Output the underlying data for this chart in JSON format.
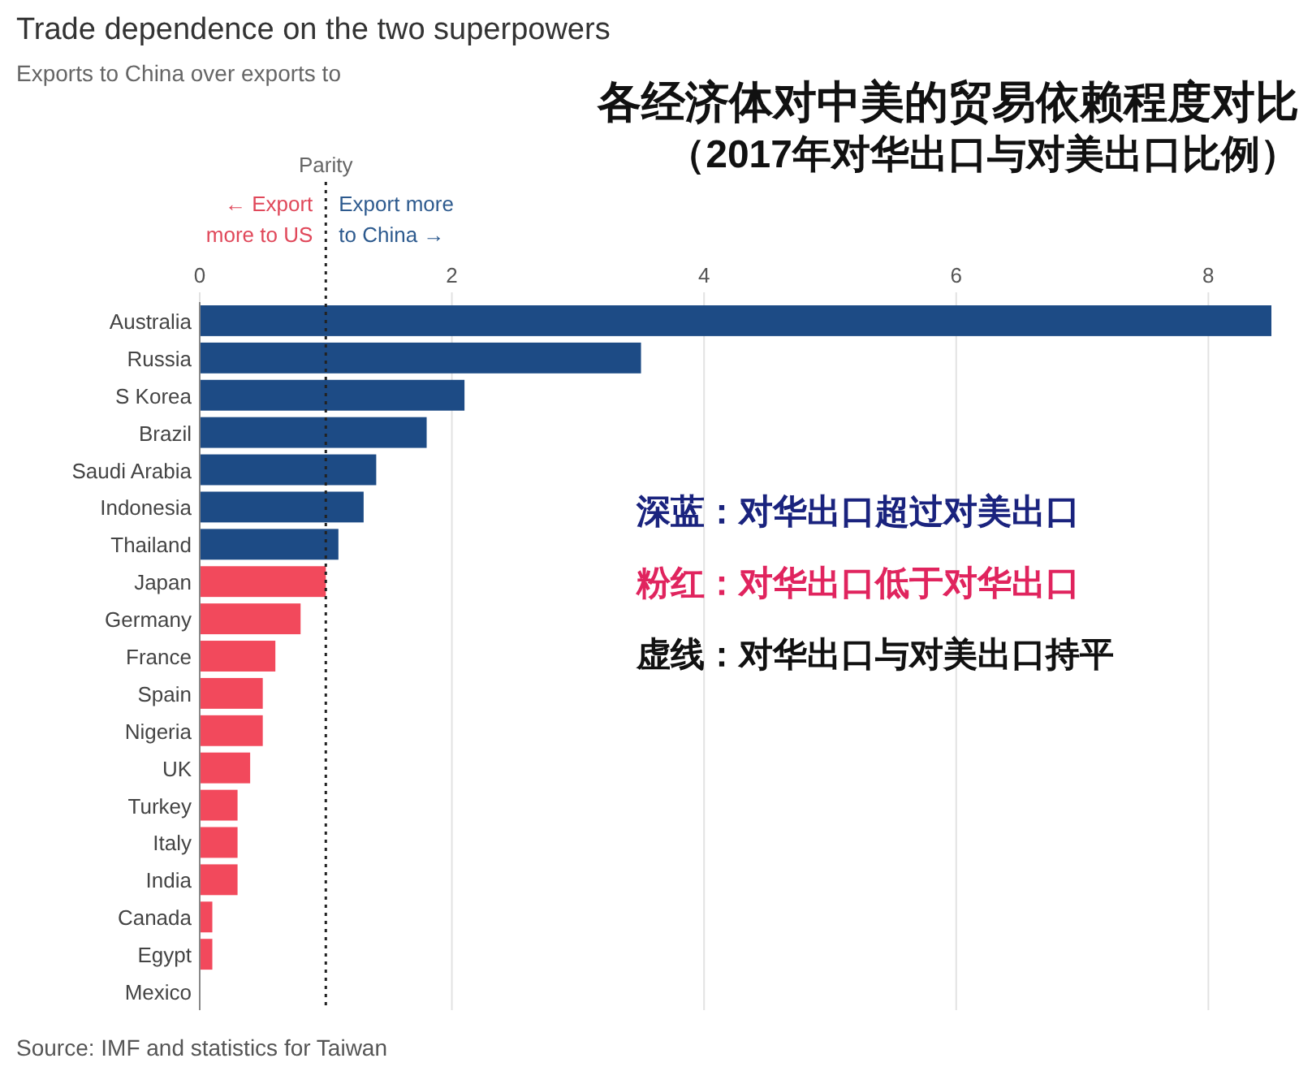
{
  "chart_data": {
    "type": "bar",
    "orientation": "horizontal",
    "title": "Trade dependence on the two superpowers",
    "subtitle": "Exports to China over exports to",
    "categories": [
      "Australia",
      "Russia",
      "S Korea",
      "Brazil",
      "Saudi Arabia",
      "Indonesia",
      "Thailand",
      "Japan",
      "Germany",
      "France",
      "Spain",
      "Nigeria",
      "UK",
      "Turkey",
      "Italy",
      "India",
      "Canada",
      "Egypt",
      "Mexico"
    ],
    "values": [
      8.5,
      3.5,
      2.1,
      1.8,
      1.4,
      1.3,
      1.1,
      1.0,
      0.8,
      0.6,
      0.5,
      0.5,
      0.4,
      0.3,
      0.3,
      0.3,
      0.1,
      0.1,
      0.0
    ],
    "colors": [
      "#1d4b85",
      "#1d4b85",
      "#1d4b85",
      "#1d4b85",
      "#1d4b85",
      "#1d4b85",
      "#1d4b85",
      "#f2495c",
      "#f2495c",
      "#f2495c",
      "#f2495c",
      "#f2495c",
      "#f2495c",
      "#f2495c",
      "#f2495c",
      "#f2495c",
      "#f2495c",
      "#f2495c",
      "#f2495c"
    ],
    "xlim": [
      0,
      8.5
    ],
    "xticks": [
      0,
      2,
      4,
      6,
      8
    ],
    "grid": "x",
    "ref_lines": [
      {
        "axis": "x",
        "value": 1,
        "label": "Parity",
        "line_style": "dotted",
        "color": "#222222"
      }
    ],
    "annotations": [
      "各经济体对中美的贸易依赖程度对比",
      "（2017年对华出口与对美出口比例）",
      "← Export more to US",
      "Export more to China →",
      "深蓝：对华出口超过对美出口",
      "粉红：对华出口低于对华出口",
      "虚线：对华出口与对美出口持平",
      "Source: IMF and statistics for Taiwan"
    ]
  }
}
